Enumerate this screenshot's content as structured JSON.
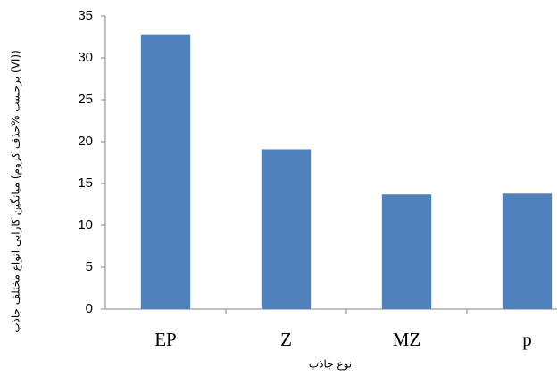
{
  "chart_data": {
    "type": "bar",
    "y_label": "میانگین کارایی انواع مختلف جاذب (برحسب %حذف کروم (VI))",
    "x_label": "نوع جاذب",
    "categories": [
      "EP",
      "Z",
      "MZ",
      "p"
    ],
    "values": [
      32.8,
      19.1,
      13.7,
      13.8
    ],
    "color": "#4f81bd",
    "ylim": [
      0,
      35
    ],
    "yticks": [
      0,
      5,
      10,
      15,
      20,
      25,
      30,
      35
    ],
    "grid": false
  }
}
